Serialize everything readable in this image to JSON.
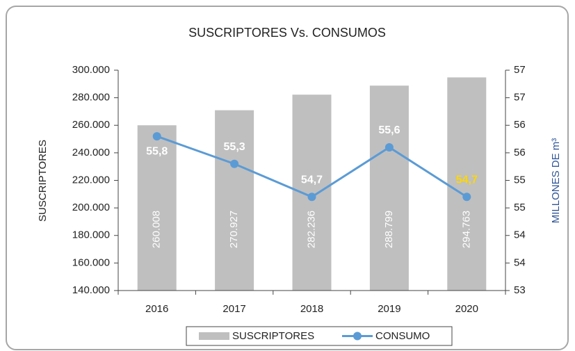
{
  "chart_data": {
    "type": "bar_line",
    "title": "SUSCRIPTORES Vs. CONSUMOS",
    "y_label": "SUSCRIPTORES",
    "y2_label": "MILLONES DE m³",
    "categories": [
      "2016",
      "2017",
      "2018",
      "2019",
      "2020"
    ],
    "series": [
      {
        "name": "SUSCRIPTORES",
        "type": "bar",
        "color": "#bfbfbf",
        "label_color": "#ffffff",
        "values": [
          260008,
          270927,
          282236,
          288799,
          294763
        ],
        "value_labels": [
          "260.008",
          "270.927",
          "282.236",
          "288.799",
          "294.763"
        ]
      },
      {
        "name": "CONSUMO",
        "type": "line",
        "axis": "y2",
        "color": "#5b9bd5",
        "label_colors": [
          "#ffffff",
          "#ffffff",
          "#ffffff",
          "#ffffff",
          "#ffd700"
        ],
        "values": [
          55.8,
          55.3,
          54.7,
          55.6,
          54.7
        ],
        "value_labels": [
          "55,8",
          "55,3",
          "54,7",
          "55,6",
          "54,7"
        ]
      }
    ],
    "ylim": [
      140000,
      300000
    ],
    "yticks": [
      {
        "value": 140000,
        "label": "140.000"
      },
      {
        "value": 160000,
        "label": "160.000"
      },
      {
        "value": 180000,
        "label": "180.000"
      },
      {
        "value": 200000,
        "label": "200.000"
      },
      {
        "value": 220000,
        "label": "220.000"
      },
      {
        "value": 240000,
        "label": "240.000"
      },
      {
        "value": 260000,
        "label": "260.000"
      },
      {
        "value": 280000,
        "label": "280.000"
      },
      {
        "value": 300000,
        "label": "300.000"
      }
    ],
    "y2lim": [
      53,
      57
    ],
    "y2ticks": [
      53,
      {
        "value": 53.5,
        "label": "54"
      },
      54,
      {
        "value": 54.5,
        "label": "55"
      },
      55,
      {
        "value": 55.5,
        "label": "56"
      },
      56,
      {
        "value": 56.5,
        "label": "57"
      },
      57
    ],
    "legend": "bottom"
  }
}
